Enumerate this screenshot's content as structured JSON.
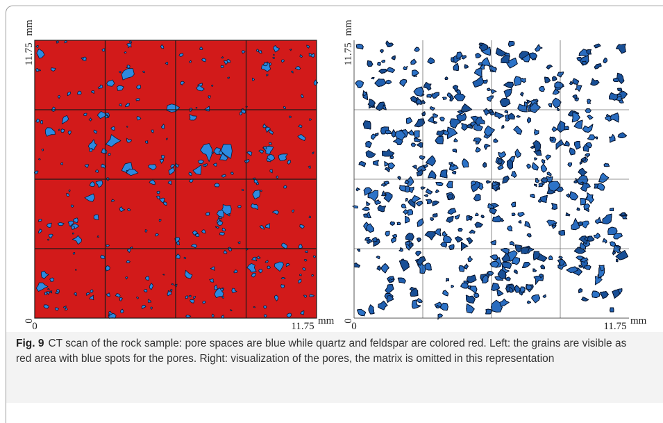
{
  "figure": {
    "left_panel": {
      "y_unit": "mm",
      "y_max": "11.75",
      "y_min": "0",
      "x_min": "0",
      "x_max": "11.75",
      "x_unit": "mm"
    },
    "right_panel": {
      "y_unit": "mm",
      "y_max": "11.75",
      "y_min": "0",
      "x_min": "0",
      "x_max": "11.75",
      "x_unit": "mm"
    },
    "caption": {
      "label": "Fig. 9",
      "text": "CT scan of the rock sample: pore spaces are blue while quartz and feldspar are colored red. Left: the grains are visible as red area with blue spots for the pores. Right: visualization of the pores, the matrix is omitted in this representation"
    }
  }
}
